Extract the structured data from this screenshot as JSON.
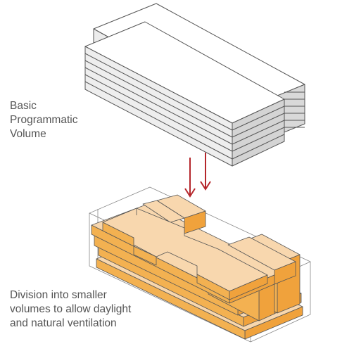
{
  "captions": {
    "top": [
      "Basic",
      "Programmatic",
      "Volume"
    ],
    "bottom": [
      "Division into smaller",
      "volumes to allow daylight",
      "and natural ventilation"
    ]
  },
  "colors": {
    "arrow": "#b5262b",
    "slab_top": "#f8d7ae",
    "slab_side": "#f0a23c",
    "slab_front": "#f3b151",
    "outline": "#555555",
    "gray_top": "#ffffff",
    "gray_side": "#d9d9d9",
    "caption": "#555555"
  },
  "icons": {
    "arrows": "down-arrow-icon"
  }
}
